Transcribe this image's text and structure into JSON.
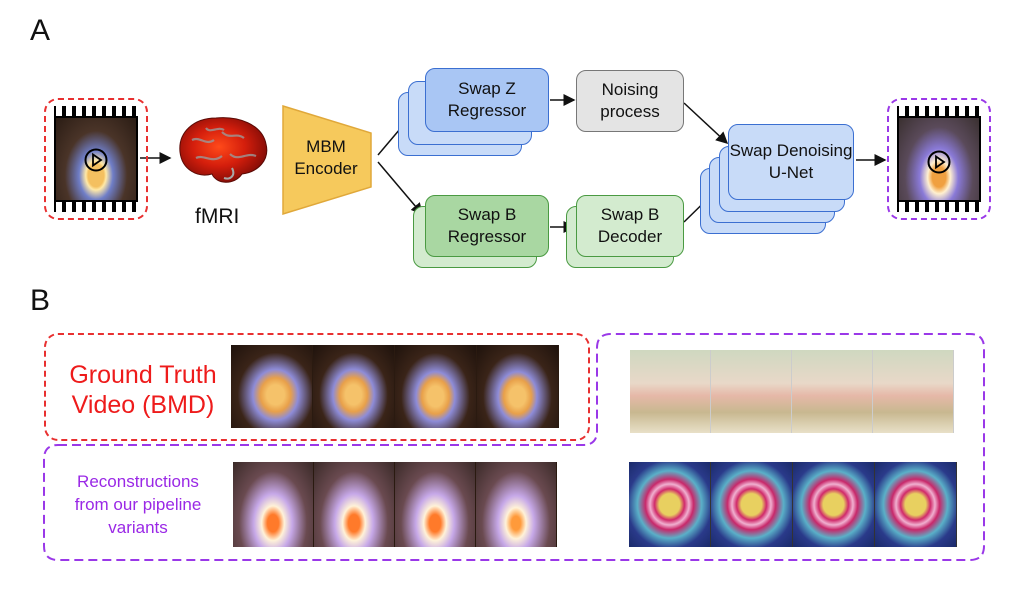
{
  "panels": {
    "a": "A",
    "b": "B"
  },
  "nodes": {
    "fmri": "fMRI",
    "mbm_encoder": "MBM Encoder",
    "swap_z_regressor": "Swap Z Regressor",
    "noising_process": "Noising process",
    "swap_b_regressor": "Swap B Regressor",
    "swap_b_decoder": "Swap B Decoder",
    "swap_denoising_unet": "Swap Denoising U-Net"
  },
  "labels": {
    "ground_truth": "Ground Truth Video (BMD)",
    "reconstructions": "Reconstructions from our pipeline variants"
  },
  "colors": {
    "ground_truth": "#e83030",
    "reconstruction": "#9a38e8",
    "encoder": "#f6c95c",
    "z_branch": "#a9c6f4",
    "b_branch": "#a9d7a2"
  },
  "icons": [
    "film-strip-icon",
    "play-icon",
    "brain-icon"
  ]
}
